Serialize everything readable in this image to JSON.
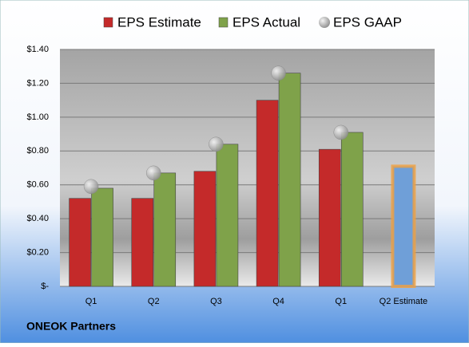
{
  "chart_data": {
    "type": "bar",
    "title": "ONEOK Partners",
    "categories": [
      "Q1",
      "Q2",
      "Q3",
      "Q4",
      "Q1",
      "Q2 Estimate"
    ],
    "series": [
      {
        "name": "EPS Estimate",
        "color": "#c42a2a",
        "values": [
          0.52,
          0.52,
          0.68,
          1.1,
          0.81,
          null
        ]
      },
      {
        "name": "EPS Actual",
        "color": "#7fa24a",
        "values": [
          0.58,
          0.67,
          0.84,
          1.26,
          0.91,
          null
        ]
      },
      {
        "name": "EPS GAAP",
        "color": "#b5b5b5",
        "values": [
          0.59,
          0.67,
          0.84,
          1.26,
          0.91,
          null
        ]
      },
      {
        "color": "#6f9fd8",
        "values": [
          null,
          null,
          null,
          null,
          null,
          0.71
        ]
      }
    ],
    "ylim": [
      0,
      1.4
    ],
    "yticks": [
      {
        "value": 0,
        "label": "$-"
      },
      {
        "value": 0.2,
        "label": "$0.20"
      },
      {
        "value": 0.4,
        "label": "$0.40"
      },
      {
        "value": 0.6,
        "label": "$0.60"
      },
      {
        "value": 0.8,
        "label": "$0.80"
      },
      {
        "value": 1.0,
        "label": "$1.00"
      },
      {
        "value": 1.2,
        "label": "$1.20"
      },
      {
        "value": 1.4,
        "label": "$1.40"
      }
    ],
    "grid": true
  }
}
